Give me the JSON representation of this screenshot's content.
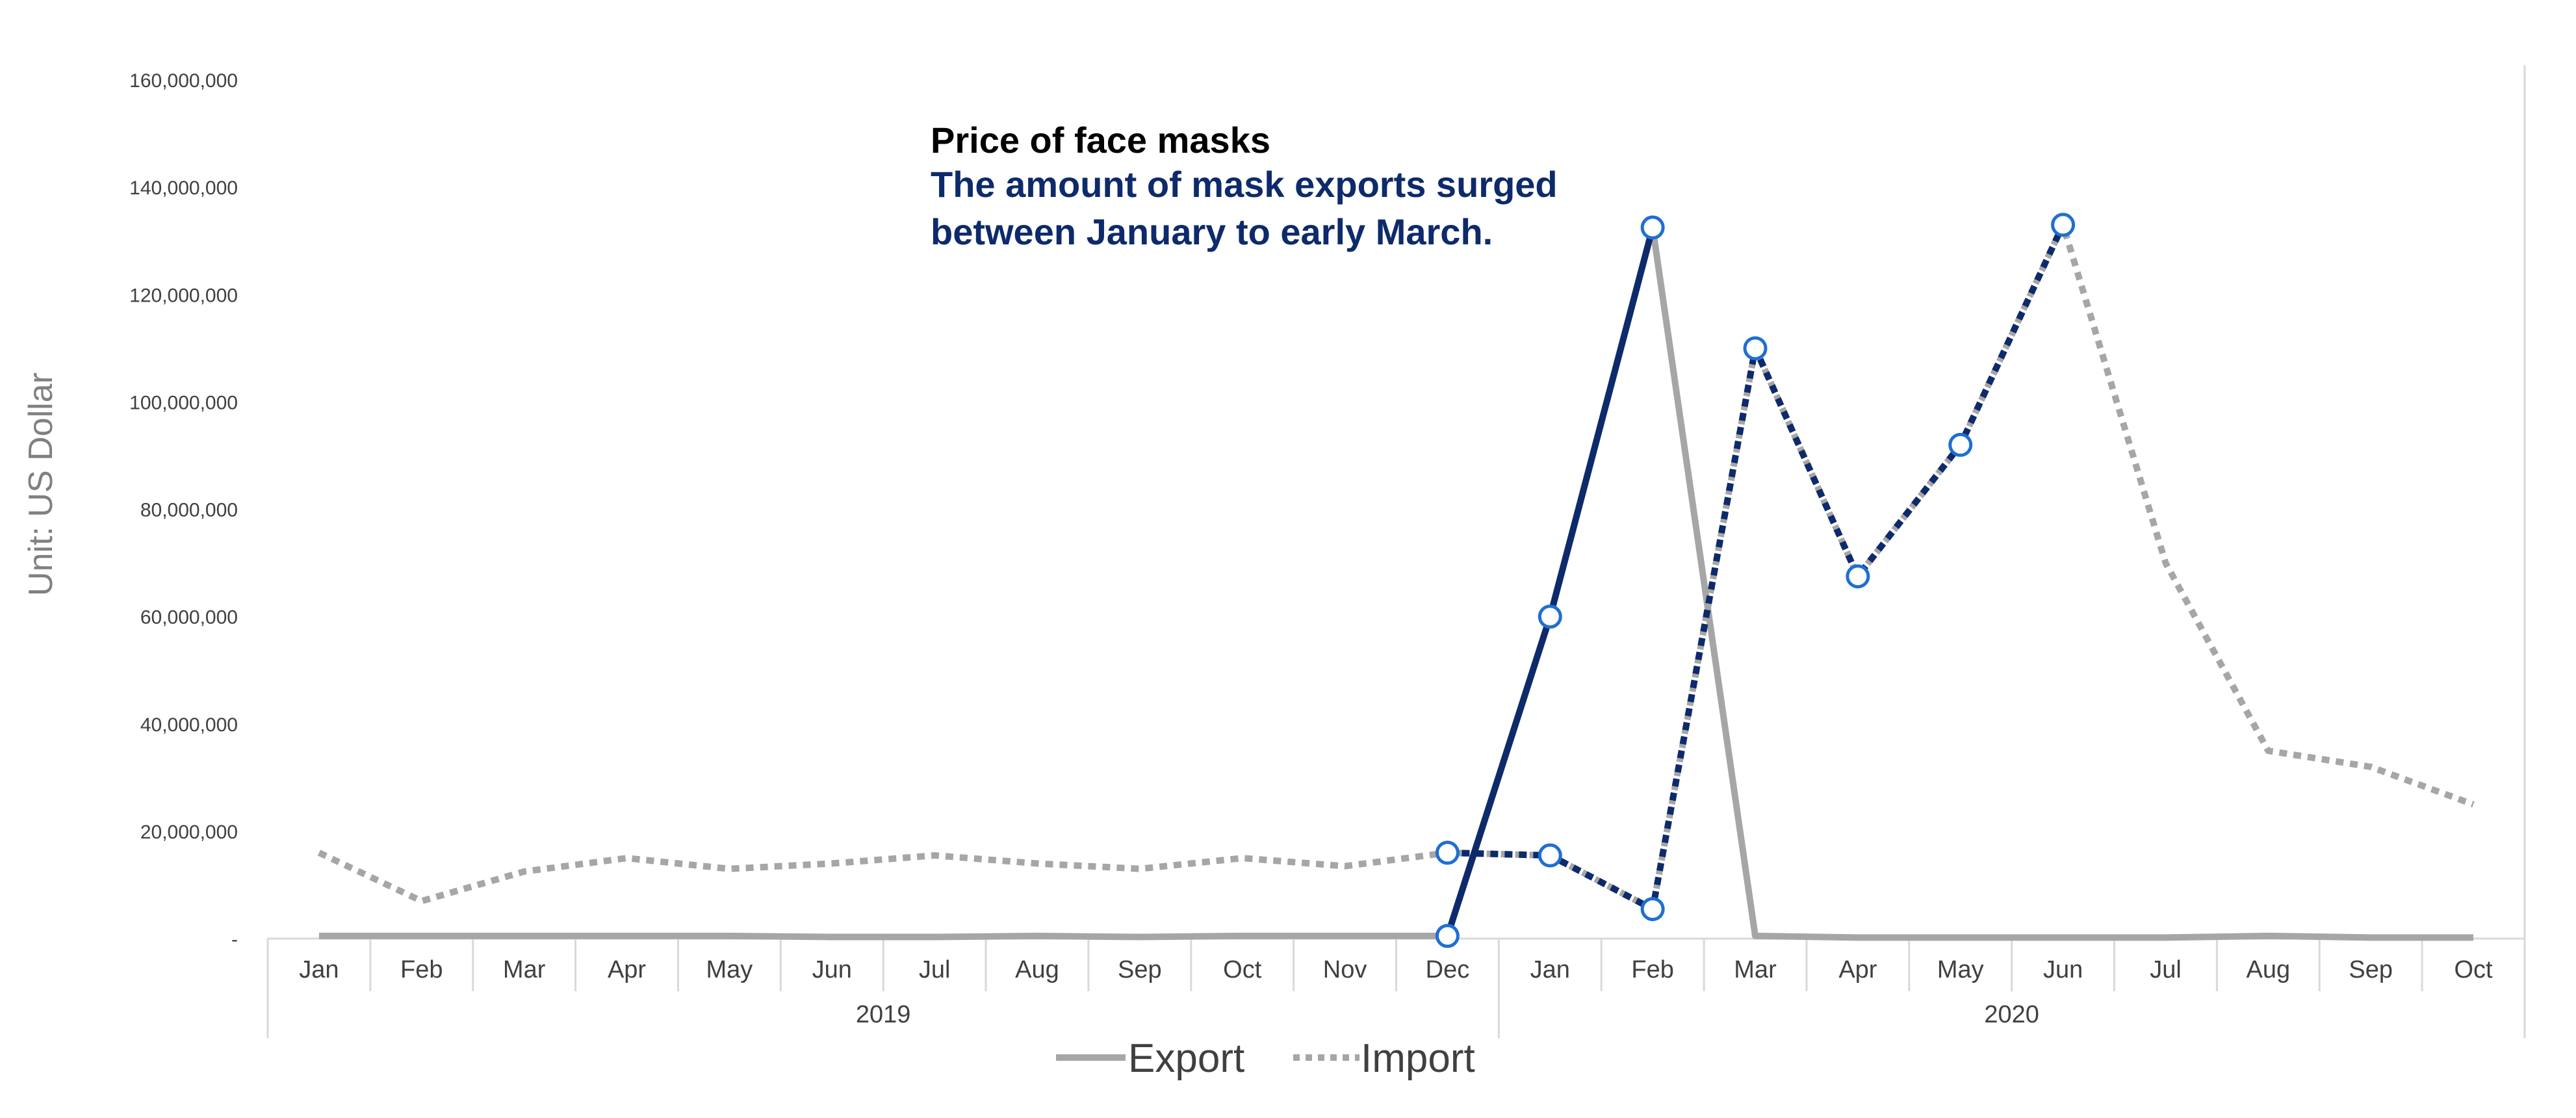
{
  "chart_data": {
    "type": "line",
    "title": "",
    "ylabel": "Unit: US Dollar",
    "xlabel": "",
    "ylim": [
      0,
      160000000
    ],
    "ytick_values": [
      0,
      20000000,
      40000000,
      60000000,
      80000000,
      100000000,
      120000000,
      140000000,
      160000000
    ],
    "ytick_labels": [
      "-",
      "20,000,000",
      "40,000,000",
      "60,000,000",
      "80,000,000",
      "100,000,000",
      "120,000,000",
      "140,000,000",
      "160,000,000"
    ],
    "categories": [
      "Jan",
      "Feb",
      "Mar",
      "Apr",
      "May",
      "Jun",
      "Jul",
      "Aug",
      "Sep",
      "Oct",
      "Nov",
      "Dec",
      "Jan",
      "Feb",
      "Mar",
      "Apr",
      "May",
      "Jun",
      "Jul",
      "Aug",
      "Sep",
      "Oct"
    ],
    "year_groups": [
      {
        "label": "2019",
        "start": 0,
        "end": 11
      },
      {
        "label": "2020",
        "start": 12,
        "end": 21
      }
    ],
    "series": [
      {
        "name": "Export",
        "style": "solid",
        "color": "#a6a6a6",
        "highlight_color": "#0d2a6b",
        "highlight_range": [
          11,
          13
        ],
        "values": [
          500000,
          500000,
          500000,
          500000,
          500000,
          300000,
          300000,
          500000,
          300000,
          500000,
          500000,
          500000,
          60000000,
          132500000,
          500000,
          200000,
          200000,
          200000,
          200000,
          500000,
          200000,
          200000
        ]
      },
      {
        "name": "Import",
        "style": "dotted",
        "color": "#a6a6a6",
        "highlight_color": "#0d2a6b",
        "highlight_range": [
          11,
          17
        ],
        "values": [
          16000000,
          7000000,
          12500000,
          15000000,
          13000000,
          14000000,
          15500000,
          14000000,
          13000000,
          15000000,
          13500000,
          16000000,
          15500000,
          5500000,
          110000000,
          67500000,
          92000000,
          133000000,
          70000000,
          35000000,
          32000000,
          25000000
        ]
      }
    ],
    "legend_position": "bottom-center",
    "marker_color": "#1f6fd1"
  },
  "annotation": {
    "title": "Price of face masks",
    "line1": "The amount of mask exports surged",
    "line2": "between January to early March."
  },
  "legend": {
    "export_label": "Export",
    "import_label": "Import"
  }
}
